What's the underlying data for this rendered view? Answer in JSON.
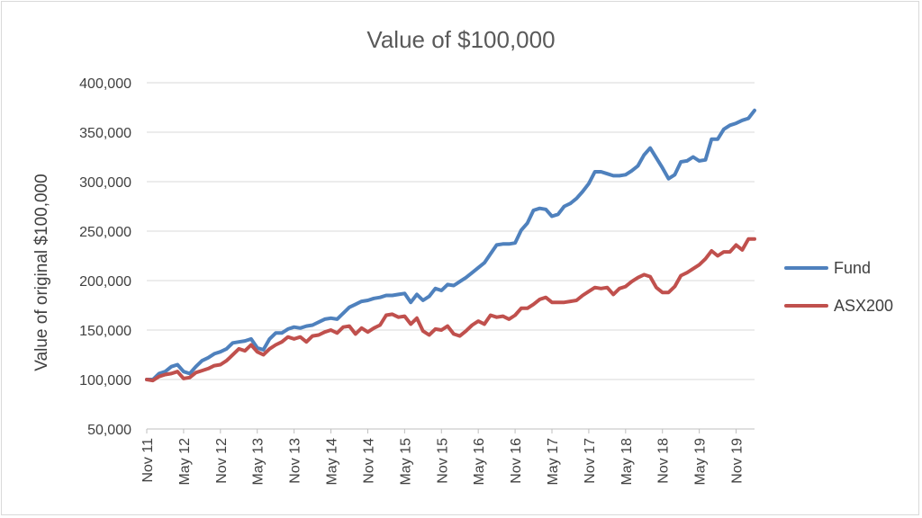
{
  "chart_data": {
    "type": "line",
    "title": "Value of $100,000",
    "xlabel": "",
    "ylabel": "Value of original $100,000",
    "ylim": [
      50000,
      400000
    ],
    "yticks": [
      50000,
      100000,
      150000,
      200000,
      250000,
      300000,
      350000,
      400000
    ],
    "ytick_labels": [
      "50,000",
      "100,000",
      "150,000",
      "200,000",
      "250,000",
      "300,000",
      "350,000",
      "400,000"
    ],
    "x_start": "2011-11",
    "x_end": "2020-02",
    "xtick_labels": [
      "Nov 11",
      "May 12",
      "Nov 12",
      "May 13",
      "Nov 13",
      "May 14",
      "Nov 14",
      "May 15",
      "Nov 15",
      "May 16",
      "Nov 16",
      "May 17",
      "Nov 17",
      "May 18",
      "Nov 18",
      "May 19",
      "Nov 19"
    ],
    "grid": true,
    "legend_position": "right",
    "series": [
      {
        "name": "Fund",
        "color": "#4f81bd",
        "x": [
          "2011-11",
          "2011-12",
          "2012-01",
          "2012-02",
          "2012-03",
          "2012-04",
          "2012-05",
          "2012-06",
          "2012-07",
          "2012-08",
          "2012-09",
          "2012-10",
          "2012-11",
          "2012-12",
          "2013-01",
          "2013-02",
          "2013-03",
          "2013-04",
          "2013-05",
          "2013-06",
          "2013-07",
          "2013-08",
          "2013-09",
          "2013-10",
          "2013-11",
          "2013-12",
          "2014-01",
          "2014-02",
          "2014-03",
          "2014-04",
          "2014-05",
          "2014-06",
          "2014-07",
          "2014-08",
          "2014-09",
          "2014-10",
          "2014-11",
          "2014-12",
          "2015-01",
          "2015-02",
          "2015-03",
          "2015-04",
          "2015-05",
          "2015-06",
          "2015-07",
          "2015-08",
          "2015-09",
          "2015-10",
          "2015-11",
          "2015-12",
          "2016-01",
          "2016-02",
          "2016-03",
          "2016-04",
          "2016-05",
          "2016-06",
          "2016-07",
          "2016-08",
          "2016-09",
          "2016-10",
          "2016-11",
          "2016-12",
          "2017-01",
          "2017-02",
          "2017-03",
          "2017-04",
          "2017-05",
          "2017-06",
          "2017-07",
          "2017-08",
          "2017-09",
          "2017-10",
          "2017-11",
          "2017-12",
          "2018-01",
          "2018-02",
          "2018-03",
          "2018-04",
          "2018-05",
          "2018-06",
          "2018-07",
          "2018-08",
          "2018-09",
          "2018-10",
          "2018-11",
          "2018-12",
          "2019-01",
          "2019-02",
          "2019-03",
          "2019-04",
          "2019-05",
          "2019-06",
          "2019-07",
          "2019-08",
          "2019-09",
          "2019-10",
          "2019-11",
          "2019-12",
          "2020-01",
          "2020-02"
        ],
        "values": [
          100000,
          100000,
          106000,
          108000,
          113000,
          115000,
          108000,
          106000,
          113000,
          119000,
          122000,
          126000,
          128000,
          131000,
          137000,
          138000,
          139000,
          141000,
          132000,
          130000,
          141000,
          147000,
          147000,
          151000,
          153000,
          152000,
          154000,
          155000,
          158000,
          161000,
          162000,
          161000,
          167000,
          173000,
          176000,
          179000,
          180000,
          182000,
          183000,
          185000,
          185000,
          186000,
          187000,
          178000,
          186000,
          180000,
          184000,
          192000,
          190000,
          196000,
          195000,
          199000,
          203000,
          208000,
          213000,
          218000,
          227000,
          236000,
          237000,
          237000,
          238000,
          251000,
          258000,
          271000,
          273000,
          272000,
          265000,
          267000,
          275000,
          278000,
          283000,
          290000,
          298000,
          310000,
          310000,
          308000,
          306000,
          306000,
          307000,
          311000,
          316000,
          327000,
          334000,
          324000,
          314000,
          303000,
          307000,
          320000,
          321000,
          325000,
          321000,
          322000,
          343000,
          343000,
          353000,
          357000,
          359000,
          362000,
          364000,
          372000
        ]
      },
      {
        "name": "ASX200",
        "color": "#c0504d",
        "x": [
          "2011-11",
          "2011-12",
          "2012-01",
          "2012-02",
          "2012-03",
          "2012-04",
          "2012-05",
          "2012-06",
          "2012-07",
          "2012-08",
          "2012-09",
          "2012-10",
          "2012-11",
          "2012-12",
          "2013-01",
          "2013-02",
          "2013-03",
          "2013-04",
          "2013-05",
          "2013-06",
          "2013-07",
          "2013-08",
          "2013-09",
          "2013-10",
          "2013-11",
          "2013-12",
          "2014-01",
          "2014-02",
          "2014-03",
          "2014-04",
          "2014-05",
          "2014-06",
          "2014-07",
          "2014-08",
          "2014-09",
          "2014-10",
          "2014-11",
          "2014-12",
          "2015-01",
          "2015-02",
          "2015-03",
          "2015-04",
          "2015-05",
          "2015-06",
          "2015-07",
          "2015-08",
          "2015-09",
          "2015-10",
          "2015-11",
          "2015-12",
          "2016-01",
          "2016-02",
          "2016-03",
          "2016-04",
          "2016-05",
          "2016-06",
          "2016-07",
          "2016-08",
          "2016-09",
          "2016-10",
          "2016-11",
          "2016-12",
          "2017-01",
          "2017-02",
          "2017-03",
          "2017-04",
          "2017-05",
          "2017-06",
          "2017-07",
          "2017-08",
          "2017-09",
          "2017-10",
          "2017-11",
          "2017-12",
          "2018-01",
          "2018-02",
          "2018-03",
          "2018-04",
          "2018-05",
          "2018-06",
          "2018-07",
          "2018-08",
          "2018-09",
          "2018-10",
          "2018-11",
          "2018-12",
          "2019-01",
          "2019-02",
          "2019-03",
          "2019-04",
          "2019-05",
          "2019-06",
          "2019-07",
          "2019-08",
          "2019-09",
          "2019-10",
          "2019-11",
          "2019-12",
          "2020-01",
          "2020-02"
        ],
        "values": [
          100000,
          99000,
          103000,
          105000,
          106000,
          108000,
          101000,
          102000,
          107000,
          109000,
          111000,
          114000,
          115000,
          119000,
          125000,
          131000,
          129000,
          135000,
          128000,
          125000,
          131000,
          135000,
          138000,
          143000,
          141000,
          143000,
          138000,
          144000,
          145000,
          148000,
          150000,
          147000,
          153000,
          154000,
          146000,
          152000,
          148000,
          152000,
          155000,
          165000,
          166000,
          163000,
          164000,
          156000,
          162000,
          149000,
          145000,
          151000,
          150000,
          154000,
          146000,
          144000,
          149000,
          155000,
          159000,
          156000,
          165000,
          163000,
          164000,
          161000,
          165000,
          172000,
          172000,
          176000,
          181000,
          183000,
          178000,
          178000,
          178000,
          179000,
          180000,
          185000,
          189000,
          193000,
          192000,
          193000,
          186000,
          192000,
          194000,
          199000,
          203000,
          206000,
          204000,
          193000,
          188000,
          188000,
          194000,
          205000,
          208000,
          212000,
          216000,
          222000,
          230000,
          225000,
          229000,
          229000,
          236000,
          231000,
          242000,
          242000
        ]
      }
    ]
  }
}
